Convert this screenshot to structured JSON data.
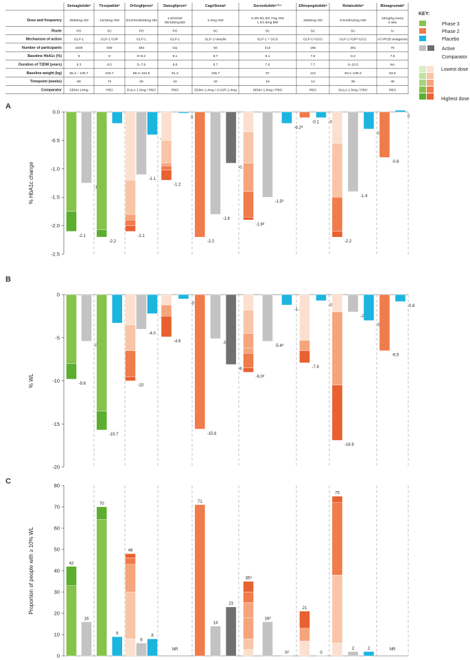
{
  "table": {
    "drug_headers": [
      "Semaglutideᵃ",
      "Tirzepatideᵃ",
      "Orforglipronᵃ",
      "Danuglipronᵃ",
      "CagriSemaᵃ",
      "Survodutideᵃ·ᵇ·ᶜ",
      "Efinopegdutideᵃ",
      "Retatrutideᵃ",
      "Bimagrumabᵃ"
    ],
    "rows": [
      {
        "label": "Dose and frequency",
        "cells": [
          "25/50mg OD",
          "10/15mg OW",
          "3/12/24/36/45mg OD",
          "1.5/10/40/\n80/120mg BD",
          "2.4mg OW",
          "0.3/0.9/1.8/2.7mg OW\n1.2/1.8mg BW",
          "25/50mg OD",
          "0.5/4/8/12mg OW",
          "10mg/kg every\n4 wks"
        ]
      },
      {
        "label": "Route",
        "cells": [
          "PO",
          "SC",
          "PO",
          "PO",
          "SC",
          "SC",
          "SC",
          "SC",
          "IV"
        ]
      },
      {
        "label": "Mechanism of action",
        "cells": [
          "GLP-1",
          "GLP-1+GIP",
          "GLP-1",
          "GLP-1",
          "GLP-1+amylin",
          "GLP-1 + GCG",
          "GLP-1+GCG",
          "GLP-1+GIP+GCG",
          "ACVR2B antagonist"
        ]
      },
      {
        "label": "Number of participants",
        "cells": [
          "1606",
          "938",
          "383",
          "411",
          "92",
          "413",
          "195",
          "281",
          "75"
        ]
      },
      {
        "label": "Baseline HbA1c (%)",
        "cells": [
          "9",
          "8",
          "8–8.2",
          "8.1",
          "8.7",
          "8.1",
          "7.6",
          "8.3",
          "7.8"
        ]
      },
      {
        "label": "Duration of T2DM (years)",
        "cells": [
          "9.3",
          "8.5",
          "5–7.9",
          "8.8",
          "8.7",
          "7.6",
          "7.7",
          "6–10.5",
          "NA"
        ]
      },
      {
        "label": "Baseline weight (kg)",
        "cells": [
          "96.4 – 100.7",
          "100.7",
          "98.4–104.8",
          "91.3",
          "105.7",
          "97",
          "113",
          "93.1–108.3",
          "93.6"
        ]
      },
      {
        "label": "Timepoint (weeks)",
        "cells": [
          "68",
          "72",
          "26",
          "16",
          "32",
          "16",
          "12",
          "36",
          "48"
        ]
      },
      {
        "label": "Comparator",
        "cells": [
          "SEMA 14mg",
          "PBO",
          "DULA 1.5mg / PBO",
          "PBO",
          "SEMA 2.4mg / CAGR 2.4mg",
          "SEMA 1.0mg / PBO",
          "PBO",
          "DULA 1.5mg / PBO",
          "PBO"
        ]
      }
    ]
  },
  "key": {
    "title": "KEY:",
    "items": [
      {
        "label": "Phase 3",
        "color": "#86c34a"
      },
      {
        "label": "Phase 2",
        "color": "#f07b4b"
      },
      {
        "label": "Placebo",
        "color": "#1cb5e0"
      },
      {
        "label": "Active",
        "color": "#bfbfbf"
      },
      {
        "label": "Comparator",
        "color": "#6d6d6d"
      }
    ],
    "lowest_label": "Lowest dose",
    "highest_label": "Highest dose"
  },
  "colors": {
    "phase3": [
      "#d9ecc4",
      "#c3e1a2",
      "#a8d57c",
      "#86c34a",
      "#5cae2e"
    ],
    "phase2": [
      "#fce0cf",
      "#f9c5a6",
      "#f5a47c",
      "#f07b4b",
      "#e8612f"
    ],
    "placebo": "#1cb5e0",
    "active": "#c3c3c3",
    "comparator": "#707070"
  },
  "chart_data": [
    {
      "panel": "A",
      "type": "bar",
      "ylabel": "% HbA1c change",
      "ylim": [
        -2.5,
        0
      ],
      "yticks": [
        "0.0",
        "-0.5",
        "-1.0",
        "-1.5",
        "-2.0",
        "-2.5"
      ],
      "ytick_values": [
        0,
        -0.5,
        -1.0,
        -1.5,
        -2.0,
        -2.5
      ],
      "groups": [
        {
          "drug": "Semaglutide",
          "bars": [
            {
              "kind": "phase3",
              "segs": [
                -1.75,
                -2.1
              ],
              "label": "-2.1"
            },
            {
              "kind": "active",
              "segs": [
                -1.25
              ],
              "label": "-1.3"
            }
          ]
        },
        {
          "drug": "Tirzepatide",
          "bars": [
            {
              "kind": "phase3",
              "segs": [
                -2.07,
                -2.2
              ],
              "label": "-2.2"
            },
            {
              "kind": "placebo",
              "segs": [
                -0.2
              ],
              "label": "-0.2"
            }
          ]
        },
        {
          "drug": "Orforglipron",
          "bars": [
            {
              "kind": "phase2",
              "segs": [
                -1.2,
                -1.8,
                -1.9,
                -2.0,
                -2.1
              ],
              "label": "-2.1"
            },
            {
              "kind": "active",
              "segs": [
                -1.1
              ],
              "label": "-1.1"
            },
            {
              "kind": "placebo",
              "segs": [
                -0.4
              ],
              "label": "-0.4"
            }
          ]
        },
        {
          "drug": "Danuglipron",
          "bars": [
            {
              "kind": "phase2",
              "segs": [
                -0.5,
                -0.9,
                -0.95,
                -1.02,
                -1.2
              ],
              "label": "-1.2"
            },
            {
              "kind": "placebo",
              "segs": [
                -0.02
              ],
              "label": "0"
            }
          ]
        },
        {
          "drug": "CagriSema",
          "bars": [
            {
              "kind": "phase2",
              "segs": [
                -2.2
              ],
              "label": "-2.2"
            },
            {
              "kind": "active",
              "segs": [
                -1.8
              ],
              "label": "-1.8"
            },
            {
              "kind": "comparator",
              "segs": [
                -0.9
              ],
              "label": "-0.9"
            }
          ]
        },
        {
          "drug": "Survodutide",
          "bars": [
            {
              "kind": "phase2",
              "segs": [
                -0.35,
                -0.9,
                -1.4,
                -1.85,
                -1.9
              ],
              "label": "-1.9ᵈ"
            },
            {
              "kind": "active",
              "segs": [
                -1.5
              ],
              "label": "-1.5ᵈ"
            },
            {
              "kind": "placebo",
              "segs": [
                -0.2
              ],
              "label": "-0.2ᵈ"
            }
          ]
        },
        {
          "drug": "Efinopegdutide",
          "bars": [
            {
              "kind": "phase2",
              "segs": [
                -0.1
              ],
              "label": "-0.1"
            },
            {
              "kind": "placebo",
              "segs": [
                -0.1
              ],
              "label": "-0.1"
            }
          ]
        },
        {
          "drug": "Retatrutide",
          "bars": [
            {
              "kind": "phase2",
              "segs": [
                -0.55,
                -1.5,
                -2.1,
                -2.2
              ],
              "label": "-2.2"
            },
            {
              "kind": "active",
              "segs": [
                -1.4
              ],
              "label": "-1.4"
            },
            {
              "kind": "placebo",
              "segs": [
                -0.3
              ],
              "label": "-0.3"
            }
          ]
        },
        {
          "drug": "Bimagrumab",
          "bars": [
            {
              "kind": "phase2",
              "segs": [
                -0.8
              ],
              "label": "-0.8"
            },
            {
              "kind": "placebo",
              "segs": [
                0.03
              ],
              "label": "0"
            }
          ]
        }
      ]
    },
    {
      "panel": "B",
      "type": "bar",
      "ylabel": "% WL",
      "ylim": [
        -20,
        0
      ],
      "yticks": [
        "0",
        "-5",
        "-10",
        "-15",
        "-20"
      ],
      "ytick_values": [
        0,
        -5,
        -10,
        -15,
        -20
      ],
      "groups": [
        {
          "drug": "Semaglutide",
          "bars": [
            {
              "kind": "phase3",
              "segs": [
                -8.0,
                -9.8
              ],
              "label": "-9.8"
            },
            {
              "kind": "active",
              "segs": [
                -5.4
              ],
              "label": "-5.4"
            }
          ]
        },
        {
          "drug": "Tirzepatide",
          "bars": [
            {
              "kind": "phase3",
              "segs": [
                -13.5,
                -15.7
              ],
              "label": "-15.7"
            },
            {
              "kind": "placebo",
              "segs": [
                -3.3
              ],
              "label": "-3.3"
            }
          ]
        },
        {
          "drug": "Orforglipron",
          "bars": [
            {
              "kind": "phase2",
              "segs": [
                -3.5,
                -6.5,
                -9.5,
                -10
              ],
              "label": "-10"
            },
            {
              "kind": "active",
              "segs": [
                -4.0
              ],
              "label": "-4.0"
            },
            {
              "kind": "placebo",
              "segs": [
                -2.2
              ],
              "label": "-2.2"
            }
          ]
        },
        {
          "drug": "Danuglipron",
          "bars": [
            {
              "kind": "phase2",
              "segs": [
                -1.2,
                -2.5,
                -4.9
              ],
              "label": "-4.9"
            },
            {
              "kind": "placebo",
              "segs": [
                -0.5
              ],
              "label": "-0.5"
            }
          ]
        },
        {
          "drug": "CagriSema",
          "bars": [
            {
              "kind": "phase2",
              "segs": [
                -15.6
              ],
              "label": "-15.6"
            },
            {
              "kind": "active",
              "segs": [
                -5.1
              ],
              "label": "-5.1"
            },
            {
              "kind": "comparator",
              "segs": [
                -8.1
              ],
              "label": "-8.1"
            }
          ]
        },
        {
          "drug": "Survodutide",
          "bars": [
            {
              "kind": "phase2",
              "segs": [
                -1.8,
                -4.5,
                -6.2,
                -6.8,
                -8.5,
                -9.0
              ],
              "label": "-9.0ᵈ"
            },
            {
              "kind": "active",
              "segs": [
                -5.4
              ],
              "label": "-5.4ᵈ"
            },
            {
              "kind": "placebo",
              "segs": [
                -1.2
              ],
              "label": "-1.2ᵈ"
            }
          ]
        },
        {
          "drug": "Efinopegdutide",
          "bars": [
            {
              "kind": "phase2",
              "segs": [
                -5.3,
                -6.5,
                -7.9
              ],
              "label": "-7.9"
            },
            {
              "kind": "placebo",
              "segs": [
                -0.7
              ],
              "label": "-0.7"
            }
          ]
        },
        {
          "drug": "Retatrutide",
          "bars": [
            {
              "kind": "phase2",
              "segs": [
                -2.0,
                -10.5,
                -16.9
              ],
              "label": "-16.9"
            },
            {
              "kind": "active",
              "segs": [
                -2.0
              ],
              "label": "-2.0"
            },
            {
              "kind": "placebo",
              "segs": [
                -3.0
              ],
              "label": "-3.0"
            }
          ]
        },
        {
          "drug": "Bimagrumab",
          "bars": [
            {
              "kind": "phase2",
              "segs": [
                -6.5
              ],
              "label": "-6.5"
            },
            {
              "kind": "placebo",
              "segs": [
                -0.8
              ],
              "label": "-0.8"
            }
          ]
        }
      ]
    },
    {
      "panel": "C",
      "type": "bar",
      "ylabel": "Proportion of people with ≥ 10% WL",
      "ylim": [
        0,
        80
      ],
      "yticks": [
        "80",
        "70",
        "60",
        "50",
        "40",
        "30",
        "20",
        "10",
        "0"
      ],
      "ytick_values": [
        80,
        70,
        60,
        50,
        40,
        30,
        20,
        10,
        0
      ],
      "groups": [
        {
          "drug": "Semaglutide",
          "bars": [
            {
              "kind": "phase3",
              "segs": [
                33,
                42
              ],
              "label": "42"
            },
            {
              "kind": "active",
              "segs": [
                16
              ],
              "label": "16"
            }
          ]
        },
        {
          "drug": "Tirzepatide",
          "bars": [
            {
              "kind": "phase3",
              "segs": [
                64,
                70
              ],
              "label": "70"
            },
            {
              "kind": "placebo",
              "segs": [
                9
              ],
              "label": "9"
            }
          ]
        },
        {
          "drug": "Orforglipron",
          "bars": [
            {
              "kind": "phase2",
              "segs": [
                8,
                30,
                43,
                46,
                48
              ],
              "label": "48"
            },
            {
              "kind": "active",
              "segs": [
                6
              ],
              "label": "6"
            },
            {
              "kind": "placebo",
              "segs": [
                8
              ],
              "label": "8"
            }
          ]
        },
        {
          "drug": "Danuglipron",
          "bars": [
            {
              "kind": "none",
              "segs": [],
              "label": "NR"
            }
          ]
        },
        {
          "drug": "CagriSema",
          "bars": [
            {
              "kind": "phase2",
              "segs": [
                71
              ],
              "label": "71"
            },
            {
              "kind": "active",
              "segs": [
                14
              ],
              "label": "14"
            },
            {
              "kind": "comparator",
              "segs": [
                23
              ],
              "label": "23"
            }
          ]
        },
        {
          "drug": "Survodutide",
          "bars": [
            {
              "kind": "phase2",
              "segs": [
                3,
                8,
                18,
                25,
                30,
                35
              ],
              "label": "35ᵈ"
            },
            {
              "kind": "active",
              "segs": [
                16
              ],
              "label": "16ᵈ"
            },
            {
              "kind": "placebo",
              "segs": [
                0
              ],
              "label": "0ᵈ"
            }
          ]
        },
        {
          "drug": "Efinopegdutide",
          "bars": [
            {
              "kind": "phase2",
              "segs": [
                7,
                13,
                21
              ],
              "label": "21"
            },
            {
              "kind": "placebo",
              "segs": [
                0
              ],
              "label": "0"
            }
          ]
        },
        {
          "drug": "Retatrutide",
          "bars": [
            {
              "kind": "phase2",
              "segs": [
                6,
                38,
                72,
                75
              ],
              "label": "75"
            },
            {
              "kind": "active",
              "segs": [
                2
              ],
              "label": "2"
            },
            {
              "kind": "placebo",
              "segs": [
                2
              ],
              "label": "2"
            }
          ]
        },
        {
          "drug": "Bimagrumab",
          "bars": [
            {
              "kind": "none",
              "segs": [],
              "label": "NR"
            }
          ]
        }
      ]
    }
  ]
}
